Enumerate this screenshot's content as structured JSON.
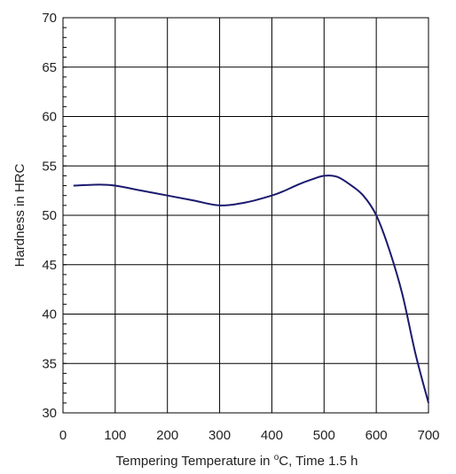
{
  "chart_data": {
    "type": "line",
    "xlabel": "Tempering Temperature in °C, Time 1.5 h",
    "xlabel_parts": {
      "before": "Tempering Temperature in ",
      "sup": "o",
      "after": "C, Time 1.5 h"
    },
    "ylabel": "Hardness in HRC",
    "xlim": [
      0,
      700
    ],
    "ylim": [
      30,
      70
    ],
    "x_ticks": [
      0,
      100,
      200,
      300,
      400,
      500,
      600,
      700
    ],
    "y_ticks": [
      30,
      35,
      40,
      45,
      50,
      55,
      60,
      65,
      70
    ],
    "x_tick_labels": [
      "0",
      "100",
      "200",
      "300",
      "400",
      "500",
      "600",
      "700"
    ],
    "y_tick_labels": [
      "30",
      "35",
      "40",
      "45",
      "50",
      "55",
      "60",
      "65",
      "70"
    ],
    "grid": true,
    "series": [
      {
        "color": "#1a1a6e",
        "x": [
          20,
          70,
          100,
          150,
          200,
          250,
          300,
          350,
          400,
          425,
          450,
          475,
          500,
          525,
          550,
          575,
          600,
          625,
          650,
          675,
          700
        ],
        "y": [
          53.0,
          53.1,
          53.0,
          52.5,
          52.0,
          51.5,
          51.0,
          51.3,
          52.0,
          52.5,
          53.1,
          53.6,
          54.0,
          53.9,
          53.1,
          52.0,
          50.0,
          46.5,
          42.0,
          36.0,
          31.0
        ]
      }
    ]
  }
}
